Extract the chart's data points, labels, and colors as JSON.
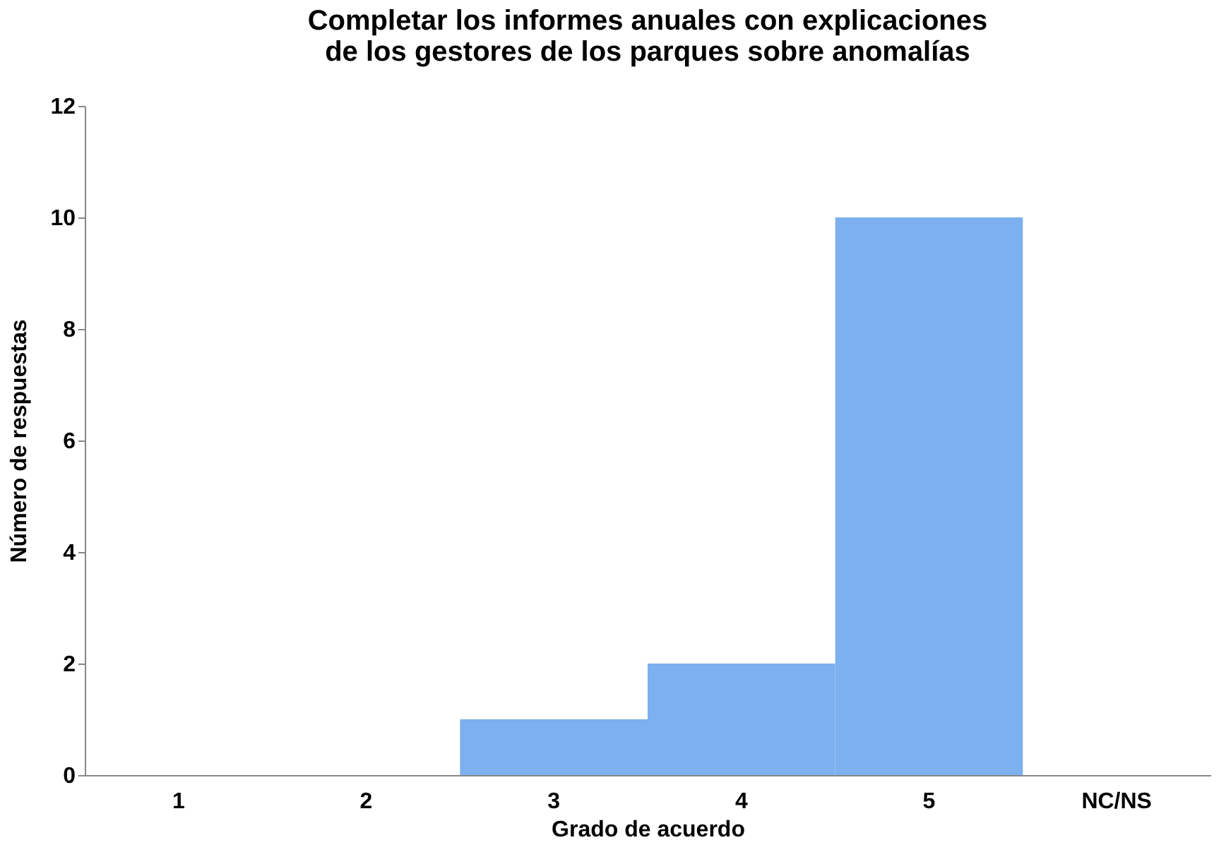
{
  "chart_data": {
    "type": "bar",
    "title": "Completar los informes anuales con explicaciones de los gestores de los parques sobre anomalías",
    "xlabel": "Grado de acuerdo",
    "ylabel": "Número de respuestas",
    "categories": [
      "1",
      "2",
      "3",
      "4",
      "5",
      "NC/NS"
    ],
    "values": [
      0,
      0,
      1,
      2,
      10,
      0
    ],
    "color": "#7db0ee",
    "ylim": [
      0,
      12
    ],
    "yticks": [
      0,
      2,
      4,
      6,
      8,
      10,
      12
    ],
    "grid": false
  }
}
